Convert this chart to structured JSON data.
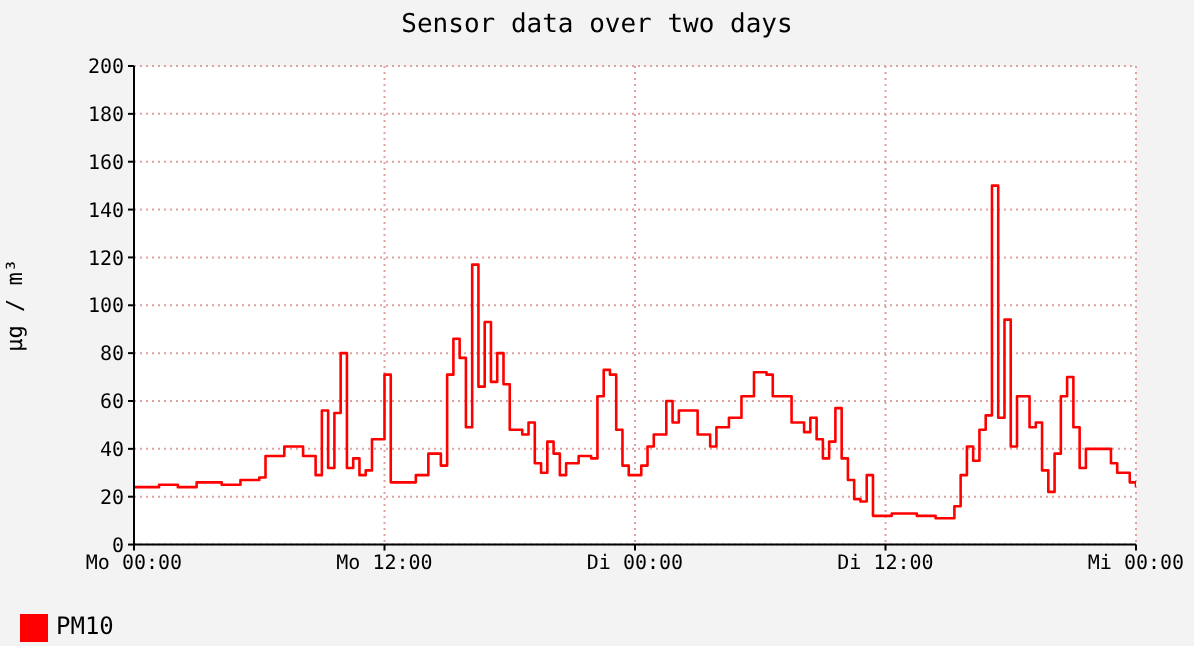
{
  "chart_data": {
    "type": "step",
    "title": "Sensor data over two days",
    "ylabel": "µg / m³",
    "categories": [
      "Mo 00:00",
      null,
      null,
      null,
      null,
      null,
      null,
      null,
      null,
      null,
      null,
      null,
      null,
      null,
      null,
      null,
      null,
      null,
      null,
      null,
      null,
      null,
      null,
      null,
      null,
      null,
      null,
      null,
      null,
      null,
      null,
      null,
      null,
      null,
      null,
      null,
      null,
      null,
      null,
      null,
      "Mo 12:00",
      null,
      null,
      null,
      null,
      null,
      null,
      null,
      null,
      null,
      null,
      null,
      null,
      null,
      null,
      null,
      null,
      null,
      null,
      null,
      null,
      null,
      null,
      null,
      null,
      null,
      null,
      null,
      null,
      null,
      null,
      null,
      null,
      null,
      null,
      null,
      null,
      null,
      null,
      null,
      "Di 00:00",
      null,
      null,
      null,
      null,
      null,
      null,
      null,
      null,
      null,
      null,
      null,
      null,
      null,
      null,
      null,
      null,
      null,
      null,
      null,
      null,
      null,
      null,
      null,
      null,
      null,
      null,
      null,
      null,
      null,
      null,
      null,
      null,
      null,
      null,
      null,
      null,
      null,
      null,
      null,
      "Di 12:00",
      null,
      null,
      null,
      null,
      null,
      null,
      null,
      null,
      null,
      null,
      null,
      null,
      null,
      null,
      null,
      null,
      null,
      null,
      null,
      null,
      null,
      null,
      null,
      null,
      null,
      null,
      null,
      null,
      null,
      null,
      null,
      null,
      null,
      null,
      null,
      null,
      null,
      null,
      null,
      "Mi 00:00"
    ],
    "series": [
      {
        "name": "PM10",
        "color": "#ff0000",
        "values": [
          24,
          24,
          24,
          24,
          25,
          25,
          25,
          24,
          24,
          24,
          26,
          26,
          26,
          26,
          25,
          25,
          25,
          27,
          27,
          27,
          28,
          37,
          37,
          37,
          41,
          41,
          41,
          37,
          37,
          29,
          56,
          32,
          55,
          80,
          32,
          36,
          29,
          31,
          44,
          44,
          71,
          26,
          26,
          26,
          26,
          29,
          29,
          38,
          38,
          33,
          71,
          86,
          78,
          49,
          117,
          66,
          93,
          68,
          80,
          67,
          48,
          48,
          46,
          51,
          34,
          30,
          43,
          38,
          29,
          34,
          34,
          37,
          37,
          36,
          62,
          73,
          71,
          48,
          33,
          29,
          29,
          33,
          41,
          46,
          46,
          60,
          51,
          56,
          56,
          56,
          46,
          46,
          41,
          49,
          49,
          53,
          53,
          62,
          62,
          72,
          72,
          71,
          62,
          62,
          62,
          51,
          51,
          47,
          53,
          44,
          36,
          43,
          57,
          36,
          27,
          19,
          18,
          29,
          12,
          12,
          12,
          13,
          13,
          13,
          13,
          12,
          12,
          12,
          11,
          11,
          11,
          16,
          29,
          41,
          35,
          48,
          54,
          150,
          53,
          94,
          41,
          62,
          62,
          49,
          51,
          31,
          22,
          38,
          62,
          70,
          49,
          32,
          40,
          40,
          40,
          40,
          34,
          30,
          30,
          26,
          24
        ]
      }
    ],
    "ylim": [
      0,
      200
    ],
    "yticks": [
      0,
      20,
      40,
      60,
      80,
      100,
      120,
      140,
      160,
      180,
      200
    ],
    "grid": true,
    "legend": "bottom left"
  }
}
